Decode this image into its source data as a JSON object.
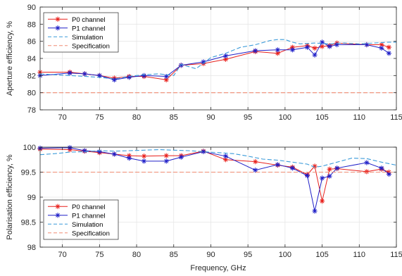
{
  "chart_data": [
    {
      "type": "line",
      "ylabel": "Aperture efficiency, %",
      "xlabel": "",
      "xlim": [
        67,
        115
      ],
      "ylim": [
        78,
        90
      ],
      "xticks": [
        70,
        75,
        80,
        85,
        90,
        95,
        100,
        105,
        110,
        115
      ],
      "yticks": [
        78,
        80,
        82,
        84,
        86,
        88,
        90
      ],
      "grid": true,
      "legend_position": "top-left",
      "series": [
        {
          "name": "P0 channel",
          "color": "#e8201c",
          "style": "solid",
          "marker": "asterisk",
          "x": [
            67,
            71,
            73,
            75,
            77,
            79,
            81,
            84,
            86,
            89,
            92,
            96,
            99,
            101,
            103,
            104,
            105,
            106,
            107,
            111,
            113,
            114
          ],
          "y": [
            82.4,
            82.4,
            82.2,
            82.0,
            81.7,
            81.9,
            81.9,
            81.5,
            83.2,
            83.4,
            83.9,
            84.8,
            84.6,
            85.3,
            85.5,
            85.2,
            85.4,
            85.5,
            85.8,
            85.6,
            85.6,
            85.3
          ]
        },
        {
          "name": "P1 channel",
          "color": "#2020c8",
          "style": "solid",
          "marker": "asterisk",
          "x": [
            67,
            71,
            73,
            75,
            77,
            79,
            81,
            84,
            86,
            89,
            92,
            96,
            99,
            101,
            103,
            104,
            105,
            106,
            107,
            111,
            113,
            114
          ],
          "y": [
            82.0,
            82.3,
            82.2,
            82.0,
            81.5,
            81.8,
            82.0,
            81.9,
            83.2,
            83.6,
            84.3,
            84.9,
            85.0,
            85.0,
            85.3,
            84.4,
            85.9,
            85.4,
            85.6,
            85.6,
            85.2,
            84.6
          ]
        },
        {
          "name": "Simulation",
          "color": "#3a9ad9",
          "style": "dashed",
          "marker": "none",
          "x": [
            67,
            69,
            71,
            73,
            75,
            77,
            79,
            81,
            83,
            85,
            86,
            88,
            90,
            92,
            94,
            96,
            98,
            99,
            100,
            101,
            102,
            104,
            106,
            108,
            110,
            112,
            114,
            115
          ],
          "y": [
            82.2,
            82.1,
            82.0,
            81.9,
            81.8,
            81.6,
            81.9,
            82.1,
            82.2,
            82.0,
            83.3,
            82.8,
            84.1,
            84.6,
            85.3,
            85.6,
            86.1,
            86.2,
            86.2,
            85.9,
            85.7,
            85.8,
            85.7,
            85.8,
            85.7,
            85.8,
            85.9,
            85.9
          ]
        },
        {
          "name": "Specification",
          "color": "#f08c73",
          "style": "dashed",
          "marker": "none",
          "x": [
            67,
            115
          ],
          "y": [
            80,
            80
          ]
        }
      ]
    },
    {
      "type": "line",
      "ylabel": "Polarisation efficiency, %",
      "xlabel": "Frequency, GHz",
      "xlim": [
        67,
        115
      ],
      "ylim": [
        98,
        100
      ],
      "xticks": [
        70,
        75,
        80,
        85,
        90,
        95,
        100,
        105,
        110,
        115
      ],
      "yticks": [
        98,
        98.5,
        99,
        99.5,
        100
      ],
      "grid": true,
      "legend_position": "bottom-left",
      "series": [
        {
          "name": "P0 channel",
          "color": "#e8201c",
          "style": "solid",
          "marker": "asterisk",
          "x": [
            67,
            71,
            73,
            75,
            77,
            79,
            81,
            84,
            86,
            89,
            92,
            96,
            99,
            101,
            103,
            104,
            105,
            106,
            107,
            111,
            113,
            114
          ],
          "y": [
            99.96,
            99.95,
            99.92,
            99.89,
            99.86,
            99.83,
            99.82,
            99.83,
            99.83,
            99.92,
            99.75,
            99.71,
            99.64,
            99.6,
            99.45,
            99.62,
            98.92,
            99.56,
            99.57,
            99.51,
            99.56,
            99.5
          ]
        },
        {
          "name": "P1 channel",
          "color": "#2020c8",
          "style": "solid",
          "marker": "asterisk",
          "x": [
            67,
            71,
            73,
            75,
            77,
            79,
            81,
            84,
            86,
            89,
            92,
            96,
            99,
            101,
            103,
            104,
            105,
            106,
            107,
            111,
            113,
            114
          ],
          "y": [
            99.98,
            99.99,
            99.93,
            99.91,
            99.86,
            99.78,
            99.72,
            99.72,
            99.8,
            99.91,
            99.82,
            99.54,
            99.65,
            99.58,
            99.43,
            98.72,
            99.38,
            99.42,
            99.58,
            99.69,
            99.58,
            99.46
          ]
        },
        {
          "name": "Simulation",
          "color": "#3a9ad9",
          "style": "dashed",
          "marker": "none",
          "x": [
            67,
            69,
            71,
            73,
            75,
            77,
            79,
            81,
            83,
            85,
            87,
            89,
            91,
            93,
            95,
            97,
            99,
            101,
            103,
            104,
            105,
            107,
            109,
            111,
            113,
            115
          ],
          "y": [
            99.85,
            99.87,
            99.9,
            99.91,
            99.93,
            99.92,
            99.93,
            99.94,
            99.95,
            99.94,
            99.93,
            99.91,
            99.89,
            99.87,
            99.82,
            99.76,
            99.74,
            99.7,
            99.66,
            99.6,
            99.62,
            99.7,
            99.78,
            99.77,
            99.7,
            99.64
          ]
        },
        {
          "name": "Specification",
          "color": "#f08c73",
          "style": "dashed",
          "marker": "none",
          "x": [
            67,
            115
          ],
          "y": [
            99.5,
            99.5
          ]
        }
      ]
    }
  ]
}
